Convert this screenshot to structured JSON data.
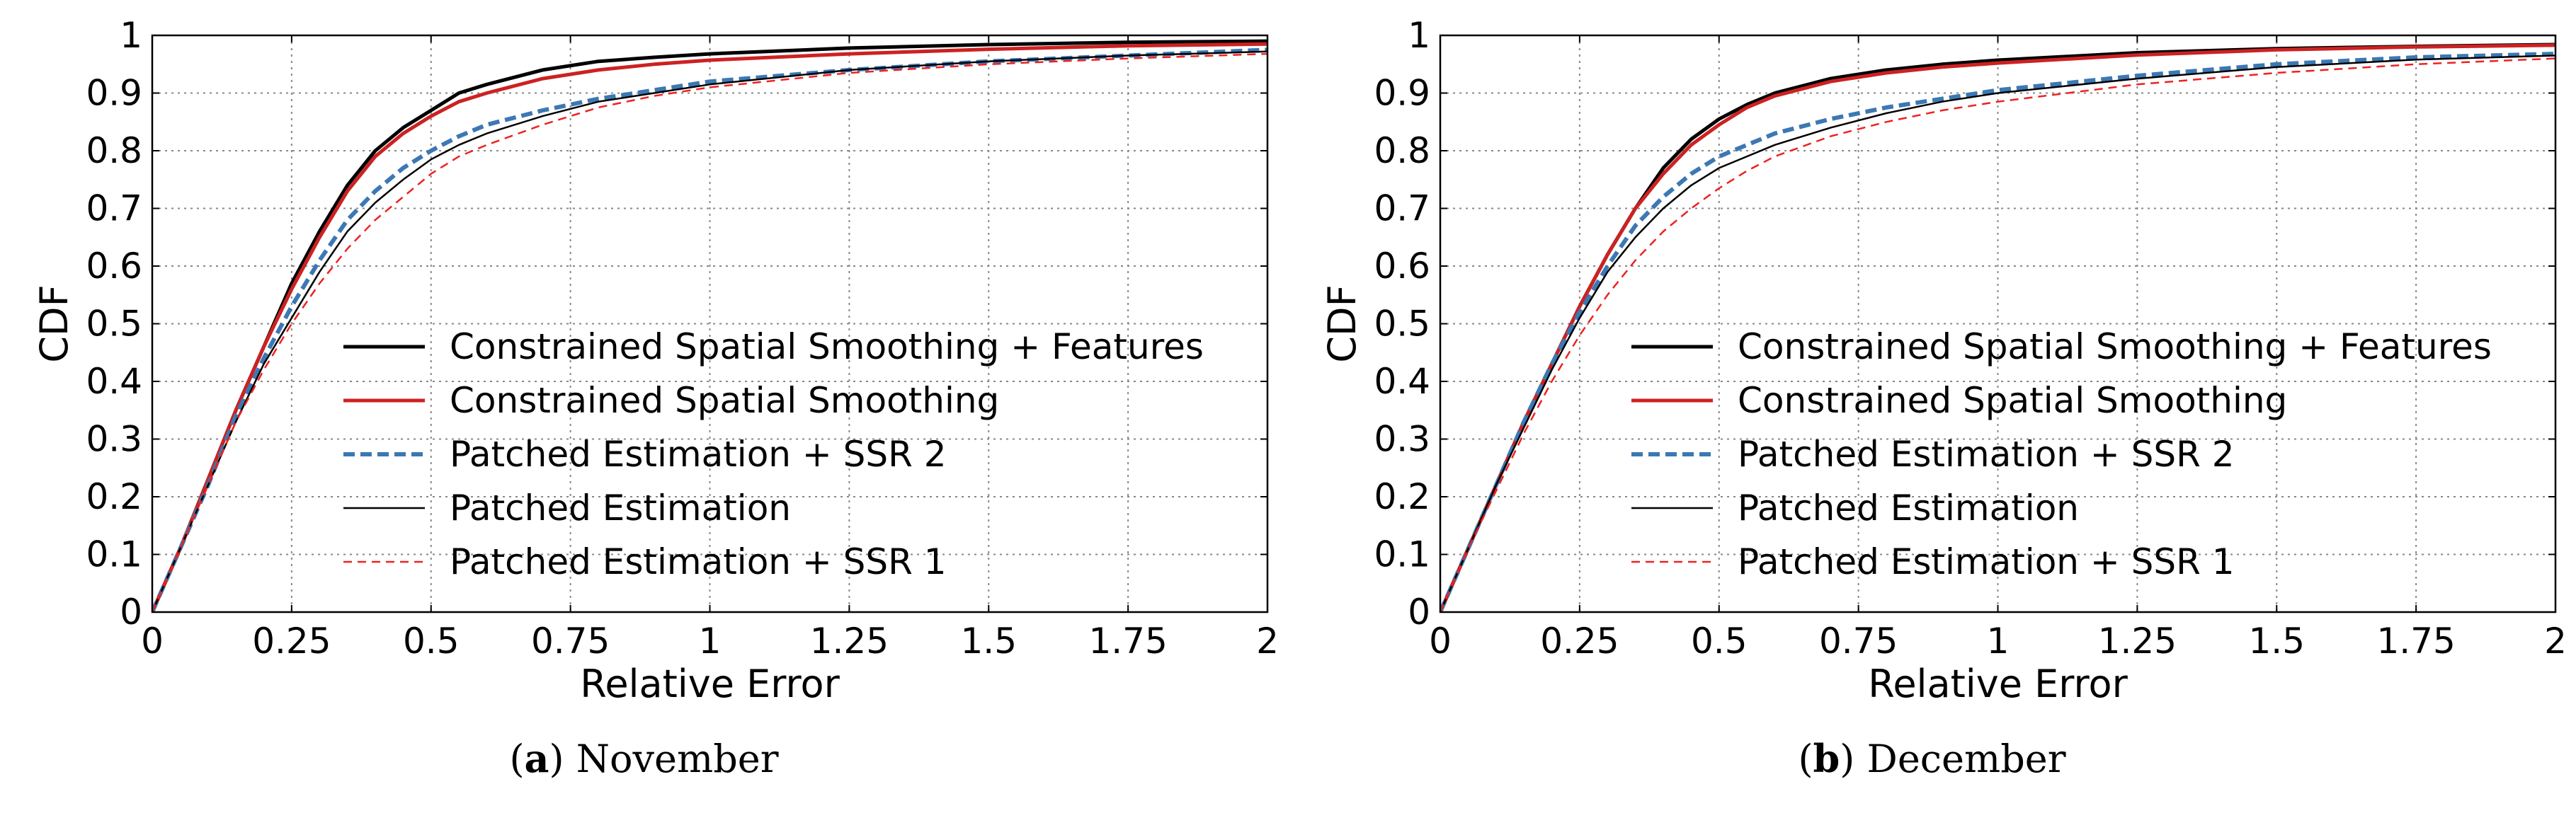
{
  "chart_data": [
    {
      "type": "line",
      "panel_label": "a",
      "caption": "November",
      "xlabel": "Relative Error",
      "ylabel": "CDF",
      "xlim": [
        0,
        2
      ],
      "ylim": [
        0,
        1
      ],
      "xticks": [
        "0",
        "0.25",
        "0.5",
        "0.75",
        "1",
        "1.25",
        "1.5",
        "1.75",
        "2"
      ],
      "yticks": [
        "0",
        "0.1",
        "0.2",
        "0.3",
        "0.4",
        "0.5",
        "0.6",
        "0.7",
        "0.8",
        "0.9",
        "1"
      ],
      "grid": true,
      "legend_position": "center-right",
      "series": [
        {
          "name": "Constrained Spatial Smoothing + Features",
          "color": "#000000",
          "style": "solid-thick",
          "x": [
            0,
            0.05,
            0.1,
            0.15,
            0.2,
            0.25,
            0.3,
            0.35,
            0.4,
            0.45,
            0.5,
            0.55,
            0.6,
            0.7,
            0.8,
            0.9,
            1.0,
            1.25,
            1.5,
            1.75,
            2.0
          ],
          "y": [
            0,
            0.11,
            0.23,
            0.35,
            0.46,
            0.57,
            0.66,
            0.74,
            0.8,
            0.84,
            0.87,
            0.9,
            0.915,
            0.94,
            0.955,
            0.962,
            0.968,
            0.978,
            0.984,
            0.988,
            0.99
          ]
        },
        {
          "name": "Constrained Spatial Smoothing",
          "color": "#cc2222",
          "style": "solid-thick",
          "x": [
            0,
            0.05,
            0.1,
            0.15,
            0.2,
            0.25,
            0.3,
            0.35,
            0.4,
            0.45,
            0.5,
            0.55,
            0.6,
            0.7,
            0.8,
            0.9,
            1.0,
            1.25,
            1.5,
            1.75,
            2.0
          ],
          "y": [
            0,
            0.11,
            0.23,
            0.35,
            0.46,
            0.56,
            0.65,
            0.73,
            0.79,
            0.83,
            0.86,
            0.885,
            0.9,
            0.925,
            0.94,
            0.95,
            0.957,
            0.968,
            0.976,
            0.982,
            0.985
          ]
        },
        {
          "name": "Patched Estimation + SSR 2",
          "color": "#3c78b4",
          "style": "dashed-thick",
          "x": [
            0,
            0.05,
            0.1,
            0.15,
            0.2,
            0.25,
            0.3,
            0.35,
            0.4,
            0.45,
            0.5,
            0.55,
            0.6,
            0.7,
            0.8,
            0.9,
            1.0,
            1.25,
            1.5,
            1.75,
            2.0
          ],
          "y": [
            0,
            0.11,
            0.22,
            0.34,
            0.44,
            0.53,
            0.61,
            0.68,
            0.73,
            0.77,
            0.8,
            0.825,
            0.845,
            0.87,
            0.89,
            0.905,
            0.92,
            0.94,
            0.955,
            0.965,
            0.975
          ]
        },
        {
          "name": "Patched Estimation",
          "color": "#000000",
          "style": "solid-thin",
          "x": [
            0,
            0.05,
            0.1,
            0.15,
            0.2,
            0.25,
            0.3,
            0.35,
            0.4,
            0.45,
            0.5,
            0.55,
            0.6,
            0.7,
            0.8,
            0.9,
            1.0,
            1.25,
            1.5,
            1.75,
            2.0
          ],
          "y": [
            0,
            0.11,
            0.22,
            0.33,
            0.43,
            0.51,
            0.59,
            0.66,
            0.71,
            0.75,
            0.785,
            0.81,
            0.83,
            0.86,
            0.885,
            0.9,
            0.915,
            0.94,
            0.955,
            0.965,
            0.972
          ]
        },
        {
          "name": "Patched Estimation + SSR 1",
          "color": "#ee2222",
          "style": "dashed-thin",
          "x": [
            0,
            0.05,
            0.1,
            0.15,
            0.2,
            0.25,
            0.3,
            0.35,
            0.4,
            0.45,
            0.5,
            0.55,
            0.6,
            0.7,
            0.8,
            0.9,
            1.0,
            1.25,
            1.5,
            1.75,
            2.0
          ],
          "y": [
            0,
            0.11,
            0.22,
            0.33,
            0.42,
            0.5,
            0.57,
            0.63,
            0.68,
            0.72,
            0.76,
            0.79,
            0.81,
            0.845,
            0.875,
            0.895,
            0.91,
            0.935,
            0.95,
            0.96,
            0.968
          ]
        }
      ]
    },
    {
      "type": "line",
      "panel_label": "b",
      "caption": "December",
      "xlabel": "Relative Error",
      "ylabel": "CDF",
      "xlim": [
        0,
        2
      ],
      "ylim": [
        0,
        1
      ],
      "xticks": [
        "0",
        "0.25",
        "0.5",
        "0.75",
        "1",
        "1.25",
        "1.5",
        "1.75",
        "2"
      ],
      "yticks": [
        "0",
        "0.1",
        "0.2",
        "0.3",
        "0.4",
        "0.5",
        "0.6",
        "0.7",
        "0.8",
        "0.9",
        "1"
      ],
      "grid": true,
      "legend_position": "center-right",
      "series": [
        {
          "name": "Constrained Spatial Smoothing + Features",
          "color": "#000000",
          "style": "solid-thick",
          "x": [
            0,
            0.05,
            0.1,
            0.15,
            0.2,
            0.25,
            0.3,
            0.35,
            0.4,
            0.45,
            0.5,
            0.55,
            0.6,
            0.7,
            0.8,
            0.9,
            1.0,
            1.25,
            1.5,
            1.75,
            2.0
          ],
          "y": [
            0,
            0.11,
            0.22,
            0.33,
            0.43,
            0.53,
            0.62,
            0.7,
            0.77,
            0.82,
            0.855,
            0.88,
            0.9,
            0.925,
            0.94,
            0.95,
            0.957,
            0.97,
            0.977,
            0.981,
            0.984
          ]
        },
        {
          "name": "Constrained Spatial Smoothing",
          "color": "#cc2222",
          "style": "solid-thick",
          "x": [
            0,
            0.05,
            0.1,
            0.15,
            0.2,
            0.25,
            0.3,
            0.35,
            0.4,
            0.45,
            0.5,
            0.55,
            0.6,
            0.7,
            0.8,
            0.9,
            1.0,
            1.25,
            1.5,
            1.75,
            2.0
          ],
          "y": [
            0,
            0.11,
            0.22,
            0.33,
            0.43,
            0.53,
            0.62,
            0.7,
            0.76,
            0.81,
            0.845,
            0.875,
            0.895,
            0.92,
            0.935,
            0.945,
            0.952,
            0.966,
            0.975,
            0.98,
            0.983
          ]
        },
        {
          "name": "Patched Estimation + SSR 2",
          "color": "#3c78b4",
          "style": "dashed-thick",
          "x": [
            0,
            0.05,
            0.1,
            0.15,
            0.2,
            0.25,
            0.3,
            0.35,
            0.4,
            0.45,
            0.5,
            0.55,
            0.6,
            0.7,
            0.8,
            0.9,
            1.0,
            1.25,
            1.5,
            1.75,
            2.0
          ],
          "y": [
            0,
            0.11,
            0.22,
            0.33,
            0.43,
            0.52,
            0.6,
            0.67,
            0.72,
            0.76,
            0.79,
            0.81,
            0.83,
            0.855,
            0.875,
            0.89,
            0.905,
            0.93,
            0.95,
            0.962,
            0.968
          ]
        },
        {
          "name": "Patched Estimation",
          "color": "#000000",
          "style": "solid-thin",
          "x": [
            0,
            0.05,
            0.1,
            0.15,
            0.2,
            0.25,
            0.3,
            0.35,
            0.4,
            0.45,
            0.5,
            0.55,
            0.6,
            0.7,
            0.8,
            0.9,
            1.0,
            1.25,
            1.5,
            1.75,
            2.0
          ],
          "y": [
            0,
            0.11,
            0.22,
            0.32,
            0.42,
            0.51,
            0.59,
            0.65,
            0.7,
            0.74,
            0.77,
            0.79,
            0.81,
            0.84,
            0.865,
            0.885,
            0.9,
            0.925,
            0.945,
            0.958,
            0.965
          ]
        },
        {
          "name": "Patched Estimation + SSR 1",
          "color": "#ee2222",
          "style": "dashed-thin",
          "x": [
            0,
            0.05,
            0.1,
            0.15,
            0.2,
            0.25,
            0.3,
            0.35,
            0.4,
            0.45,
            0.5,
            0.55,
            0.6,
            0.7,
            0.8,
            0.9,
            1.0,
            1.25,
            1.5,
            1.75,
            2.0
          ],
          "y": [
            0,
            0.11,
            0.21,
            0.31,
            0.4,
            0.48,
            0.55,
            0.61,
            0.66,
            0.7,
            0.735,
            0.765,
            0.79,
            0.825,
            0.85,
            0.87,
            0.885,
            0.915,
            0.935,
            0.95,
            0.96
          ]
        }
      ]
    }
  ]
}
